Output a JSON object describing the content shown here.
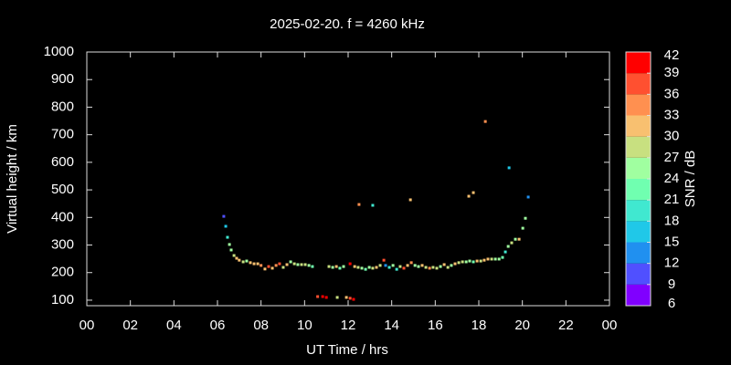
{
  "chart_data": {
    "type": "scatter",
    "title": "2025-02-20. f = 4260 kHz",
    "xlabel": "UT Time / hrs",
    "ylabel": "Virtual height / km",
    "xlim": [
      0,
      24
    ],
    "xticks": [
      {
        "value": 0,
        "label": "00"
      },
      {
        "value": 2,
        "label": "02"
      },
      {
        "value": 4,
        "label": "04"
      },
      {
        "value": 6,
        "label": "06"
      },
      {
        "value": 8,
        "label": "08"
      },
      10,
      12,
      14,
      16,
      18,
      20,
      22,
      {
        "value": 24,
        "label": "00"
      }
    ],
    "ylim": [
      80,
      1000
    ],
    "yticks": [
      100,
      200,
      300,
      400,
      500,
      600,
      700,
      800,
      900,
      1000
    ],
    "x": [
      6.29,
      6.38,
      6.46,
      6.55,
      6.63,
      6.76,
      6.88,
      7.0,
      7.18,
      7.34,
      7.51,
      7.68,
      7.85,
      8.0,
      8.18,
      8.35,
      8.52,
      8.69,
      8.85,
      9.02,
      9.19,
      9.36,
      9.53,
      9.69,
      9.86,
      10.03,
      10.2,
      10.36,
      10.6,
      10.83,
      11.0,
      11.12,
      11.29,
      11.46,
      11.62,
      11.79,
      11.5,
      11.92,
      12.09,
      12.25,
      12.09,
      12.3,
      12.5,
      12.46,
      12.63,
      12.8,
      12.97,
      13.13,
      13.13,
      13.3,
      13.47,
      13.64,
      13.72,
      13.89,
      14.06,
      14.23,
      14.39,
      14.56,
      14.73,
      14.86,
      14.9,
      15.07,
      15.23,
      15.4,
      15.57,
      15.74,
      15.9,
      16.07,
      16.24,
      16.41,
      16.58,
      16.74,
      16.91,
      17.08,
      17.25,
      17.42,
      17.58,
      17.54,
      17.75,
      17.75,
      17.92,
      18.09,
      18.3,
      18.25,
      18.42,
      18.59,
      18.76,
      18.93,
      19.09,
      19.22,
      19.35,
      19.39,
      19.51,
      19.68,
      19.85,
      20.02,
      20.14,
      20.27
    ],
    "y": [
      404,
      368,
      328,
      302,
      282,
      262,
      252,
      245,
      239,
      242,
      236,
      232,
      232,
      226,
      213,
      222,
      216,
      226,
      232,
      219,
      229,
      239,
      232,
      229,
      229,
      229,
      226,
      222,
      113,
      113,
      110,
      222,
      219,
      222,
      216,
      222,
      110,
      110,
      107,
      103,
      232,
      222,
      447,
      219,
      216,
      212,
      219,
      444,
      216,
      219,
      226,
      245,
      226,
      219,
      226,
      212,
      222,
      216,
      226,
      464,
      236,
      226,
      222,
      226,
      219,
      216,
      219,
      216,
      222,
      229,
      219,
      226,
      232,
      236,
      239,
      239,
      242,
      477,
      490,
      239,
      242,
      242,
      748,
      245,
      249,
      249,
      249,
      249,
      255,
      275,
      295,
      580,
      308,
      321,
      321,
      361,
      397,
      474
    ],
    "snr": [
      10,
      16,
      20,
      24,
      26,
      28,
      30,
      30,
      28,
      26,
      30,
      32,
      30,
      34,
      32,
      36,
      30,
      33,
      36,
      28,
      30,
      26,
      27,
      25,
      28,
      27,
      24,
      22,
      38,
      39,
      42,
      27,
      24,
      30,
      22,
      25,
      27,
      30,
      36,
      39,
      40,
      30,
      34,
      28,
      26,
      22,
      24,
      20,
      27,
      30,
      28,
      36,
      12,
      20,
      24,
      18,
      28,
      36,
      30,
      32,
      33,
      24,
      26,
      30,
      28,
      34,
      29,
      27,
      24,
      30,
      28,
      26,
      30,
      27,
      28,
      26,
      24,
      32,
      30,
      22,
      30,
      28,
      34,
      32,
      30,
      28,
      26,
      25,
      22,
      19,
      24,
      16,
      27,
      25,
      30,
      24,
      24,
      14
    ],
    "colorbar": {
      "label": "SNR / dB",
      "lim": [
        6,
        42
      ],
      "ticks": [
        6,
        9,
        12,
        15,
        18,
        21,
        24,
        27,
        30,
        33,
        36,
        39,
        42
      ],
      "colors": [
        "#8000ff",
        "#5050ff",
        "#2090f0",
        "#20c8e8",
        "#40e8d0",
        "#70ffb0",
        "#a0ffa0",
        "#c8e080",
        "#f8c070",
        "#ff9050",
        "#ff5030",
        "#ff0000"
      ]
    }
  }
}
